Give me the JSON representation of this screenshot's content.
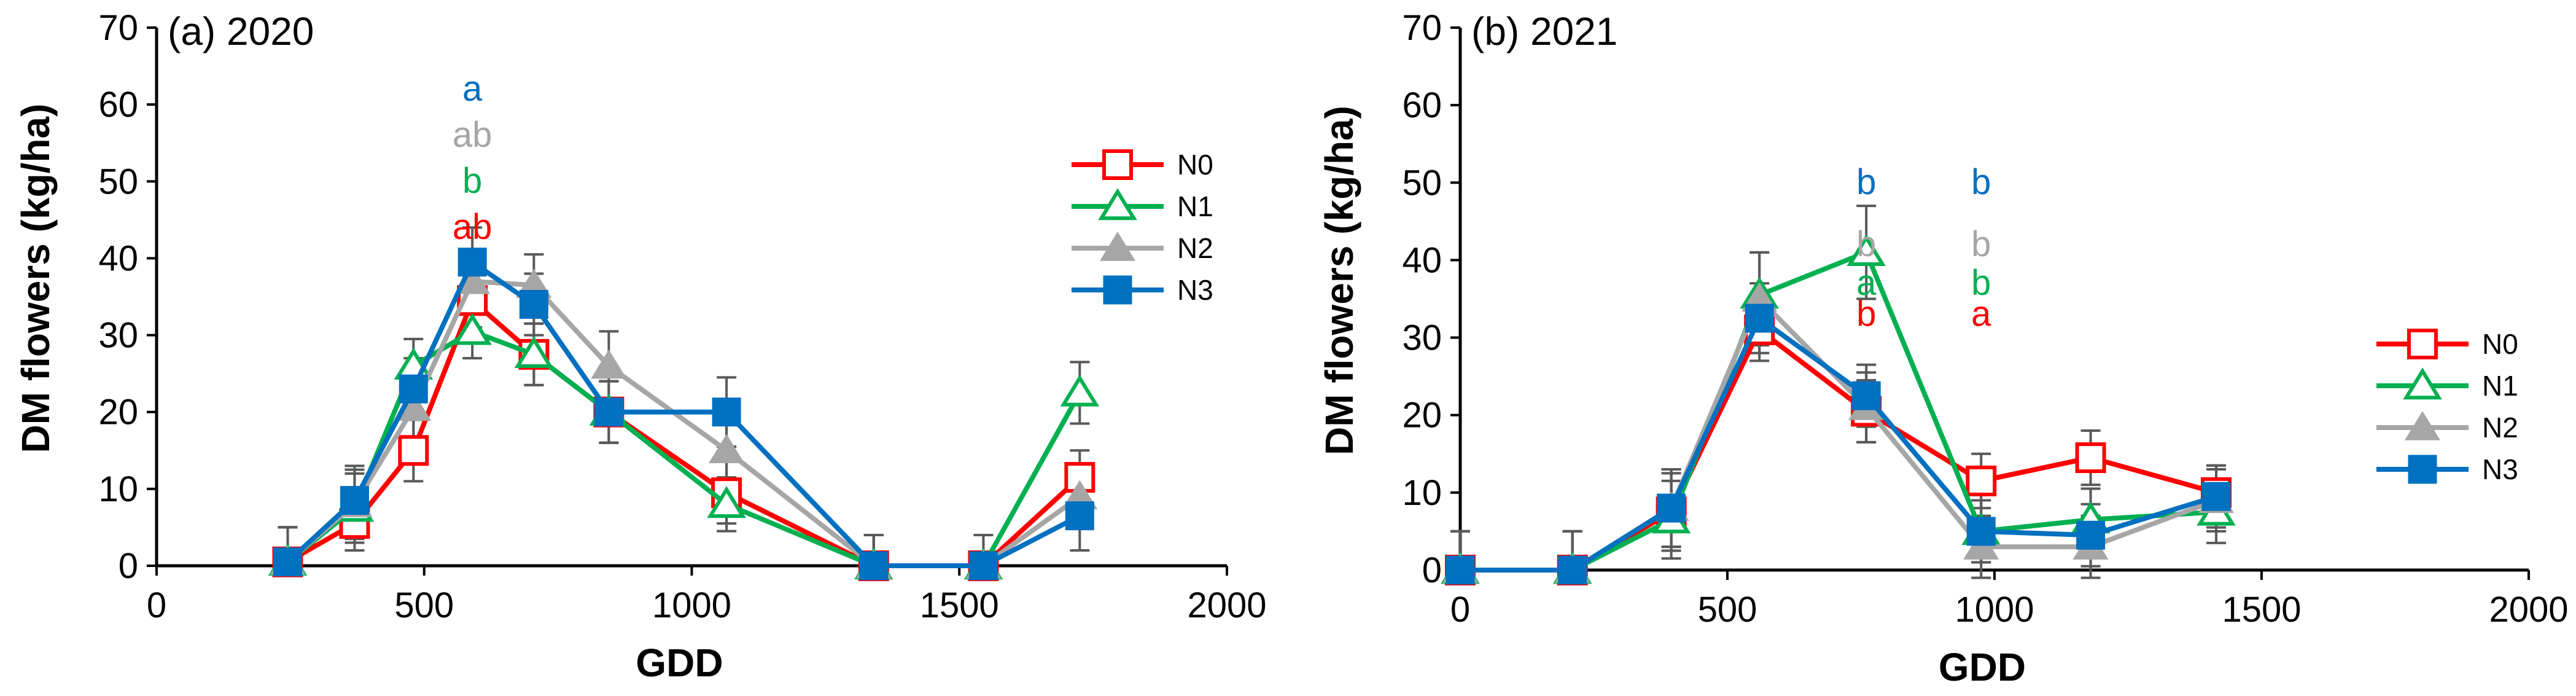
{
  "colors": {
    "N0": "#ff0000",
    "N1": "#00b050",
    "N2": "#a6a6a6",
    "N3": "#0070c0",
    "axis": "#000000",
    "error": "#595959"
  },
  "chart_data": [
    {
      "type": "line",
      "title": "(a) 2020",
      "xlabel": "GDD",
      "ylabel": "DM flowers (kg/ha)",
      "xlim": [
        0,
        2000
      ],
      "ylim": [
        0,
        70
      ],
      "xticks": [
        0,
        500,
        1000,
        1500,
        2000
      ],
      "yticks": [
        0,
        10,
        20,
        30,
        40,
        50,
        60,
        70
      ],
      "legend_position": "right",
      "series": [
        {
          "name": "N0",
          "marker": "square-open",
          "x": [
            245,
            370,
            480,
            590,
            705,
            845,
            1065,
            1340,
            1545,
            1725
          ],
          "y": [
            0.5,
            5.5,
            15,
            34.5,
            27.5,
            20,
            9.5,
            0,
            0,
            11.5
          ],
          "err": [
            4.5,
            3.5,
            4,
            3.5,
            4,
            4,
            4,
            4,
            4,
            3.5
          ]
        },
        {
          "name": "N1",
          "marker": "triangle-open",
          "x": [
            245,
            370,
            480,
            590,
            705,
            845,
            1065,
            1340,
            1545,
            1725
          ],
          "y": [
            0.5,
            7.5,
            26,
            30.5,
            27.5,
            20,
            8,
            0,
            0,
            22.5
          ],
          "err": [
            4.5,
            4.5,
            3.5,
            3.5,
            4,
            4,
            3.5,
            4,
            4,
            4
          ]
        },
        {
          "name": "N2",
          "marker": "triangle-filled",
          "x": [
            245,
            370,
            480,
            590,
            705,
            845,
            1065,
            1340,
            1545,
            1725
          ],
          "y": [
            0.5,
            8,
            20.5,
            37,
            36.5,
            26,
            15,
            0,
            0,
            9
          ],
          "err": [
            4.5,
            4.5,
            4,
            4,
            4,
            4.5,
            4.5,
            4,
            4,
            3
          ]
        },
        {
          "name": "N3",
          "marker": "square-filled",
          "x": [
            245,
            370,
            480,
            590,
            705,
            845,
            1065,
            1340,
            1545,
            1725
          ],
          "y": [
            0.5,
            8.5,
            23,
            39.5,
            34,
            20,
            20,
            0,
            0,
            6.5
          ],
          "err": [
            4.5,
            4.5,
            4,
            4.5,
            4,
            4,
            4.5,
            4,
            4,
            4.5
          ]
        }
      ],
      "annotations": [
        {
          "x": 590,
          "y": 42.5,
          "text": "ab",
          "color": "N0"
        },
        {
          "x": 590,
          "y": 48.5,
          "text": "b",
          "color": "N1"
        },
        {
          "x": 590,
          "y": 54.5,
          "text": "ab",
          "color": "N2"
        },
        {
          "x": 590,
          "y": 60.5,
          "text": "a",
          "color": "N3"
        }
      ]
    },
    {
      "type": "line",
      "title": "(b) 2021",
      "xlabel": "GDD",
      "ylabel": "DM flowers (kg/ha)",
      "xlim": [
        0,
        2000
      ],
      "ylim": [
        0,
        70
      ],
      "xticks": [
        0,
        500,
        1000,
        1500,
        2000
      ],
      "yticks": [
        0,
        10,
        20,
        30,
        40,
        50,
        60,
        70
      ],
      "legend_position": "right",
      "series": [
        {
          "name": "N0",
          "marker": "square-open",
          "x": [
            0,
            210,
            395,
            560,
            760,
            975,
            1180,
            1415
          ],
          "y": [
            0,
            0,
            7.5,
            31,
            20.5,
            11.5,
            14.5,
            10
          ],
          "err": [
            5,
            5,
            5,
            4,
            4,
            3.5,
            3.5,
            3.5
          ]
        },
        {
          "name": "N1",
          "marker": "triangle-open",
          "x": [
            0,
            210,
            395,
            560,
            760,
            975,
            1180,
            1415
          ],
          "y": [
            0,
            0,
            6.5,
            35.5,
            41,
            5,
            6.5,
            7.5
          ],
          "err": [
            5,
            5,
            5,
            5.5,
            6,
            4,
            4,
            4
          ]
        },
        {
          "name": "N2",
          "marker": "triangle-filled",
          "x": [
            0,
            210,
            395,
            560,
            760,
            975,
            1180,
            1415
          ],
          "y": [
            0,
            0,
            8,
            35,
            21,
            3,
            3,
            9
          ],
          "err": [
            5,
            5,
            5,
            6,
            4.5,
            4,
            4,
            4
          ]
        },
        {
          "name": "N3",
          "marker": "square-filled",
          "x": [
            0,
            210,
            395,
            560,
            760,
            975,
            1180,
            1415
          ],
          "y": [
            0,
            0,
            8,
            32.5,
            22.5,
            5,
            4.5,
            9.5
          ],
          "err": [
            5,
            5,
            5,
            4.5,
            4,
            4,
            4,
            4
          ]
        }
      ],
      "annotations": [
        {
          "x": 760,
          "y": 31.5,
          "text": "b",
          "color": "N0"
        },
        {
          "x": 760,
          "y": 35.5,
          "text": "a",
          "color": "N1"
        },
        {
          "x": 760,
          "y": 40.5,
          "text": "b",
          "color": "N2"
        },
        {
          "x": 760,
          "y": 48.5,
          "text": "b",
          "color": "N3"
        },
        {
          "x": 975,
          "y": 31.5,
          "text": "a",
          "color": "N0"
        },
        {
          "x": 975,
          "y": 35.5,
          "text": "b",
          "color": "N1"
        },
        {
          "x": 975,
          "y": 40.5,
          "text": "b",
          "color": "N2"
        },
        {
          "x": 975,
          "y": 48.5,
          "text": "b",
          "color": "N3"
        }
      ]
    }
  ]
}
